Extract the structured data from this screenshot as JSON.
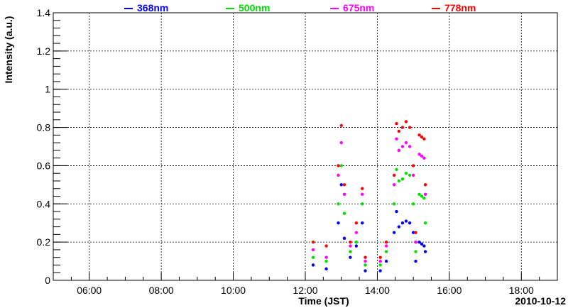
{
  "chart_data": {
    "type": "scatter",
    "title": "",
    "xlabel": "Time (JST)",
    "ylabel": "Intensity (a.u.)",
    "date_label": "2010-10-12",
    "x_ticks": [
      "06:00",
      "08:00",
      "10:00",
      "12:00",
      "14:00",
      "16:00",
      "18:00"
    ],
    "xlim": [
      "05:00",
      "19:00"
    ],
    "ylim": [
      0,
      1.4
    ],
    "y_ticks": [
      "0",
      "0.2",
      "0.4",
      "0.6",
      "0.8",
      "1",
      "1.2",
      "1.4"
    ],
    "grid": true,
    "legend_position": "top",
    "series": [
      {
        "name": "368nm",
        "color": "#0000ff",
        "points": [
          [
            "12:13",
            0.08
          ],
          [
            "12:35",
            0.06
          ],
          [
            "12:55",
            0.3
          ],
          [
            "13:00",
            0.5
          ],
          [
            "13:05",
            0.22
          ],
          [
            "13:15",
            0.12
          ],
          [
            "13:25",
            0.18
          ],
          [
            "13:35",
            0.3
          ],
          [
            "13:40",
            0.05
          ],
          [
            "14:05",
            0.05
          ],
          [
            "14:15",
            0.1
          ],
          [
            "14:28",
            0.25
          ],
          [
            "14:32",
            0.36
          ],
          [
            "14:36",
            0.28
          ],
          [
            "14:42",
            0.3
          ],
          [
            "14:48",
            0.31
          ],
          [
            "14:54",
            0.3
          ],
          [
            "15:00",
            0.25
          ],
          [
            "15:04",
            0.1
          ],
          [
            "15:10",
            0.2
          ],
          [
            "15:14",
            0.19
          ],
          [
            "15:18",
            0.18
          ],
          [
            "15:20",
            0.15
          ]
        ]
      },
      {
        "name": "500nm",
        "color": "#00e000",
        "points": [
          [
            "12:13",
            0.12
          ],
          [
            "12:35",
            0.1
          ],
          [
            "12:55",
            0.4
          ],
          [
            "13:00",
            0.6
          ],
          [
            "13:05",
            0.35
          ],
          [
            "13:15",
            0.15
          ],
          [
            "13:25",
            0.2
          ],
          [
            "13:35",
            0.4
          ],
          [
            "13:40",
            0.08
          ],
          [
            "14:05",
            0.08
          ],
          [
            "14:15",
            0.15
          ],
          [
            "14:28",
            0.4
          ],
          [
            "14:32",
            0.58
          ],
          [
            "14:36",
            0.52
          ],
          [
            "14:42",
            0.53
          ],
          [
            "14:48",
            0.56
          ],
          [
            "14:54",
            0.55
          ],
          [
            "15:00",
            0.4
          ],
          [
            "15:04",
            0.15
          ],
          [
            "15:10",
            0.45
          ],
          [
            "15:14",
            0.44
          ],
          [
            "15:18",
            0.43
          ],
          [
            "15:20",
            0.3
          ]
        ]
      },
      {
        "name": "675nm",
        "color": "#ff00ff",
        "points": [
          [
            "12:13",
            0.16
          ],
          [
            "12:35",
            0.12
          ],
          [
            "12:55",
            0.55
          ],
          [
            "13:00",
            0.72
          ],
          [
            "13:05",
            0.45
          ],
          [
            "13:15",
            0.18
          ],
          [
            "13:25",
            0.25
          ],
          [
            "13:35",
            0.45
          ],
          [
            "13:40",
            0.1
          ],
          [
            "14:05",
            0.1
          ],
          [
            "14:15",
            0.18
          ],
          [
            "14:28",
            0.5
          ],
          [
            "14:32",
            0.74
          ],
          [
            "14:36",
            0.68
          ],
          [
            "14:42",
            0.7
          ],
          [
            "14:48",
            0.72
          ],
          [
            "14:54",
            0.7
          ],
          [
            "15:00",
            0.55
          ],
          [
            "15:04",
            0.2
          ],
          [
            "15:10",
            0.66
          ],
          [
            "15:14",
            0.65
          ],
          [
            "15:18",
            0.64
          ],
          [
            "15:20",
            0.45
          ]
        ]
      },
      {
        "name": "778nm",
        "color": "#ff0000",
        "points": [
          [
            "12:13",
            0.2
          ],
          [
            "12:35",
            0.18
          ],
          [
            "12:55",
            0.6
          ],
          [
            "13:00",
            0.81
          ],
          [
            "13:05",
            0.5
          ],
          [
            "13:15",
            0.2
          ],
          [
            "13:25",
            0.3
          ],
          [
            "13:35",
            0.48
          ],
          [
            "13:40",
            0.12
          ],
          [
            "14:05",
            0.12
          ],
          [
            "14:15",
            0.2
          ],
          [
            "14:28",
            0.55
          ],
          [
            "14:32",
            0.82
          ],
          [
            "14:36",
            0.78
          ],
          [
            "14:42",
            0.8
          ],
          [
            "14:48",
            0.83
          ],
          [
            "14:54",
            0.8
          ],
          [
            "15:00",
            0.6
          ],
          [
            "15:04",
            0.25
          ],
          [
            "15:10",
            0.76
          ],
          [
            "15:14",
            0.75
          ],
          [
            "15:18",
            0.74
          ],
          [
            "15:20",
            0.5
          ]
        ]
      }
    ]
  }
}
